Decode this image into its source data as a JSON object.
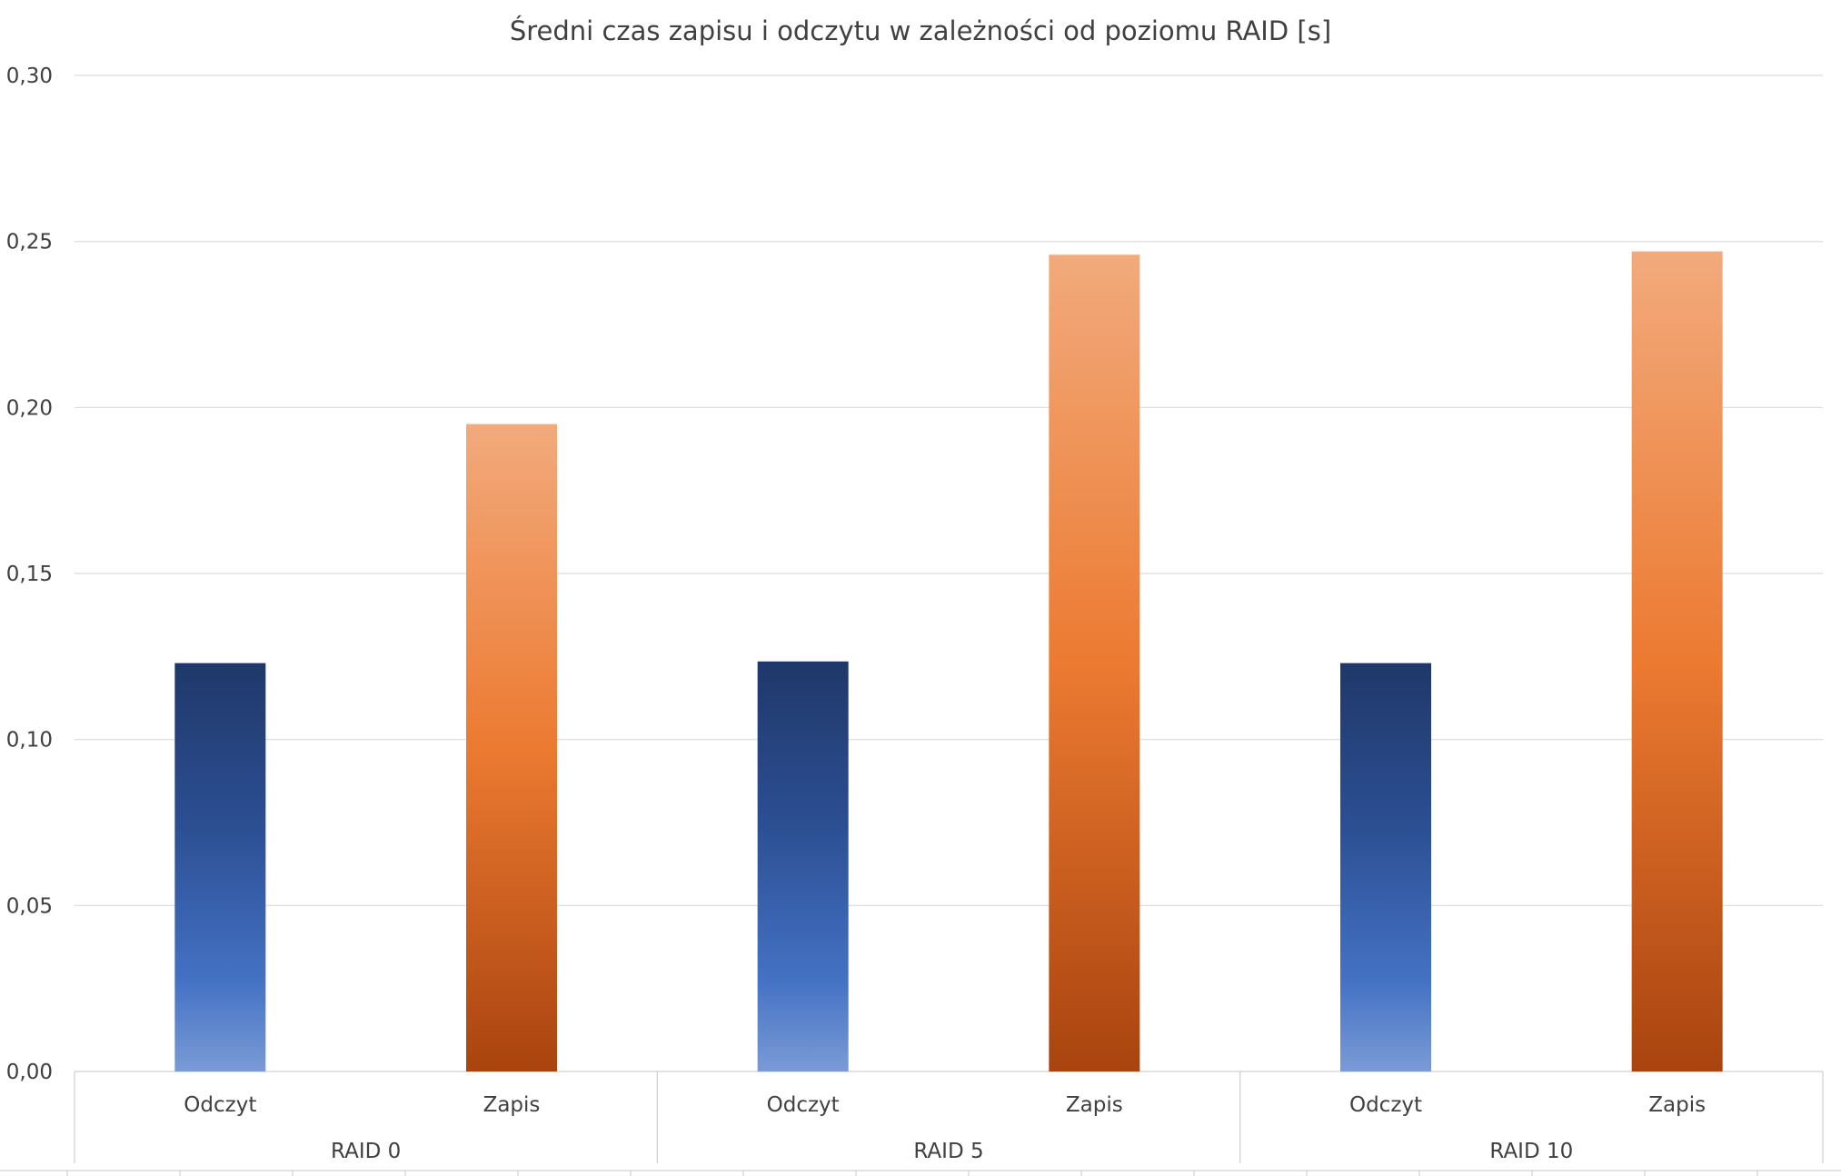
{
  "chart_data": {
    "type": "bar",
    "title": "Średni czas zapisu i odczytu w zależności od poziomu RAID [s]",
    "xlabel": "",
    "ylabel": "",
    "ylim": [
      0,
      0.3
    ],
    "yticks": [
      "0,00",
      "0,05",
      "0,10",
      "0,15",
      "0,20",
      "0,25",
      "0,30"
    ],
    "grid": true,
    "legend": "none",
    "groups": [
      {
        "label": "RAID 0",
        "bars": [
          {
            "label": "Odczyt",
            "value": 0.123,
            "color": "#2f4f8f"
          },
          {
            "label": "Zapis",
            "value": 0.195,
            "color": "#e87a2c"
          }
        ]
      },
      {
        "label": "RAID 5",
        "bars": [
          {
            "label": "Odczyt",
            "value": 0.1235,
            "color": "#2f4f8f"
          },
          {
            "label": "Zapis",
            "value": 0.246,
            "color": "#e87a2c"
          }
        ]
      },
      {
        "label": "RAID 10",
        "bars": [
          {
            "label": "Odczyt",
            "value": 0.123,
            "color": "#2f4f8f"
          },
          {
            "label": "Zapis",
            "value": 0.247,
            "color": "#e87a2c"
          }
        ]
      }
    ]
  }
}
